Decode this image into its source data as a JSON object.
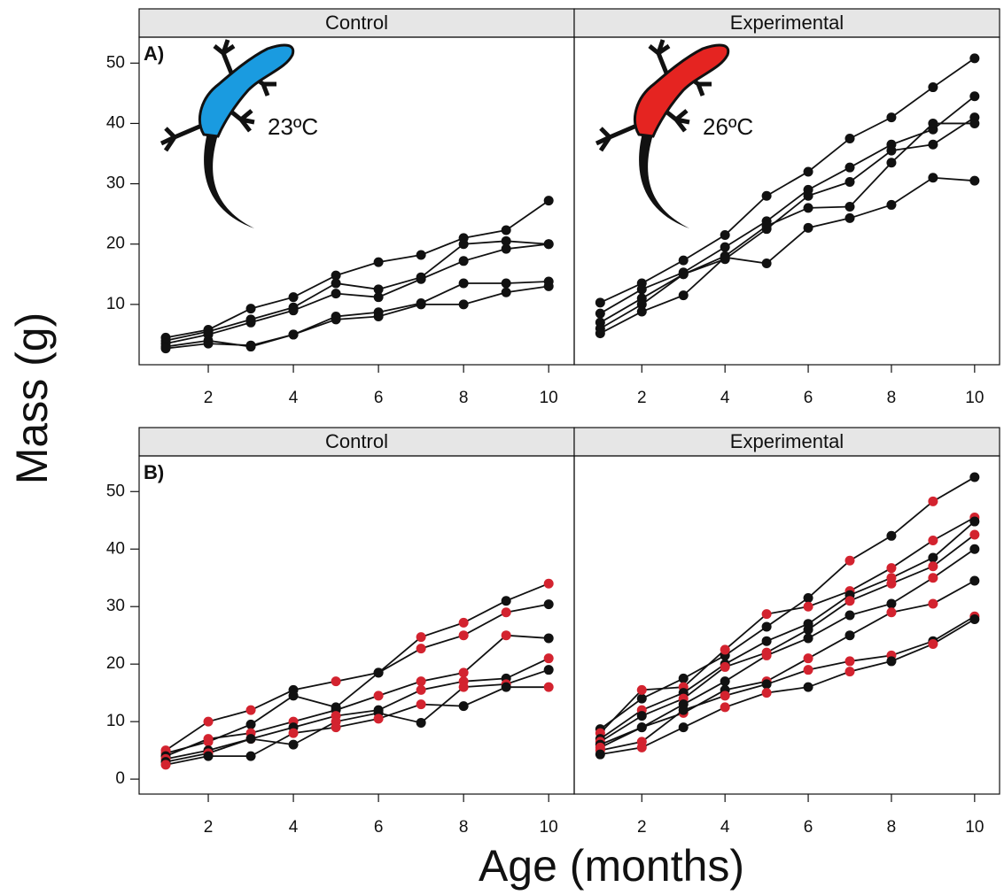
{
  "labels": {
    "y": "Mass (g)",
    "x": "Age (months)"
  },
  "chart_data": [
    {
      "type": "line",
      "title": "Control",
      "panel_label": "A)",
      "annotation": "23ºC",
      "lizard_color": "#1a9be0",
      "x": [
        1,
        2,
        3,
        4,
        5,
        6,
        7,
        8,
        9,
        10
      ],
      "xlim": [
        0.375,
        10.6
      ],
      "xticks": [
        2,
        4,
        6,
        8,
        10
      ],
      "ylim": [
        0,
        54.3
      ],
      "yticks": [
        10,
        20,
        30,
        40,
        50
      ],
      "series": [
        {
          "color": "#111111",
          "values": [
            4.5,
            5.8,
            9.3,
            11.2,
            14.8,
            17,
            18.2,
            21,
            22.3,
            27.2
          ]
        },
        {
          "color": "#111111",
          "values": [
            4,
            5.5,
            7.5,
            9.5,
            13.5,
            12.5,
            14.5,
            20,
            20.5,
            20
          ]
        },
        {
          "color": "#111111",
          "values": [
            3.5,
            5,
            7,
            9,
            11.8,
            11.2,
            14.2,
            17.2,
            19.2,
            20
          ]
        },
        {
          "color": "#111111",
          "values": [
            3,
            4,
            3,
            5,
            8,
            8.7,
            10.2,
            13.5,
            13.5,
            13.8
          ]
        },
        {
          "color": "#111111",
          "values": [
            2.7,
            3.5,
            3.2,
            5,
            7.5,
            8,
            10,
            10,
            12,
            13
          ]
        }
      ]
    },
    {
      "type": "line",
      "title": "Experimental",
      "annotation": "26ºC",
      "lizard_color": "#e52421",
      "x": [
        1,
        2,
        3,
        4,
        5,
        6,
        7,
        8,
        9,
        10
      ],
      "xlim": [
        0.375,
        10.6
      ],
      "xticks": [
        2,
        4,
        6,
        8,
        10
      ],
      "ylim": [
        0,
        54.3
      ],
      "series": [
        {
          "color": "#111111",
          "values": [
            10.3,
            13.5,
            17.3,
            21.5,
            28,
            32,
            37.5,
            41,
            46,
            50.8
          ]
        },
        {
          "color": "#111111",
          "values": [
            8.5,
            12.5,
            15.3,
            19.5,
            23.8,
            29,
            32.7,
            36.5,
            39,
            44.5
          ]
        },
        {
          "color": "#111111",
          "values": [
            7,
            11,
            15,
            17.5,
            22.5,
            28,
            30.3,
            35.5,
            36.5,
            41
          ]
        },
        {
          "color": "#111111",
          "values": [
            6,
            10,
            15,
            18,
            23,
            26,
            26.2,
            33.5,
            40,
            40
          ]
        },
        {
          "color": "#111111",
          "values": [
            5.2,
            8.8,
            11.5,
            17.8,
            16.8,
            22.7,
            24.3,
            26.5,
            31,
            30.5
          ]
        }
      ]
    },
    {
      "type": "line",
      "title": "Control",
      "panel_label": "B)",
      "x": [
        1,
        2,
        3,
        4,
        5,
        6,
        7,
        8,
        9,
        10
      ],
      "xlim": [
        0.375,
        10.6
      ],
      "xticks": [
        2,
        4,
        6,
        8,
        10
      ],
      "ylim": [
        -2.6,
        56.2
      ],
      "yticks": [
        0,
        10,
        20,
        30,
        40,
        50
      ],
      "series": [
        {
          "color": "#111111",
          "values": [
            5,
            10,
            12,
            15.5,
            17,
            18.5,
            24.7,
            27.2,
            31,
            34
          ],
          "marker_colors": [
            "#d3232f",
            "#d3232f",
            "#d3232f",
            "#111111",
            "#d3232f",
            "#111111",
            "#d3232f",
            "#d3232f",
            "#111111",
            "#d3232f"
          ]
        },
        {
          "color": "#111111",
          "values": [
            4.5,
            6.5,
            9.5,
            14.5,
            12.5,
            18.5,
            22.7,
            25,
            29,
            30.4
          ],
          "marker_colors": [
            "#d3232f",
            "#d3232f",
            "#111111",
            "#111111",
            "#111111",
            "#111111",
            "#d3232f",
            "#d3232f",
            "#d3232f",
            "#111111"
          ]
        },
        {
          "color": "#111111",
          "values": [
            4,
            7,
            8,
            10,
            12,
            14.5,
            17,
            18.5,
            25,
            24.5
          ],
          "marker_colors": [
            "#111111",
            "#d3232f",
            "#d3232f",
            "#d3232f",
            "#111111",
            "#d3232f",
            "#d3232f",
            "#d3232f",
            "#d3232f",
            "#111111"
          ]
        },
        {
          "color": "#111111",
          "values": [
            3.5,
            5,
            7,
            9,
            11,
            12,
            15.5,
            17,
            17.5,
            21
          ],
          "marker_colors": [
            "#d3232f",
            "#111111",
            "#d3232f",
            "#111111",
            "#d3232f",
            "#111111",
            "#d3232f",
            "#d3232f",
            "#111111",
            "#d3232f"
          ]
        },
        {
          "color": "#111111",
          "values": [
            3,
            4.5,
            7,
            6,
            10,
            11.5,
            9.8,
            16,
            16.5,
            19
          ],
          "marker_colors": [
            "#111111",
            "#d3232f",
            "#111111",
            "#111111",
            "#d3232f",
            "#111111",
            "#111111",
            "#d3232f",
            "#d3232f",
            "#111111"
          ]
        },
        {
          "color": "#111111",
          "values": [
            2.5,
            4,
            4,
            8,
            9,
            10.5,
            13,
            12.7,
            16,
            16
          ],
          "marker_colors": [
            "#d3232f",
            "#111111",
            "#111111",
            "#d3232f",
            "#d3232f",
            "#d3232f",
            "#d3232f",
            "#111111",
            "#111111",
            "#d3232f"
          ]
        }
      ]
    },
    {
      "type": "line",
      "title": "Experimental",
      "x": [
        1,
        2,
        3,
        4,
        5,
        6,
        7,
        8,
        9,
        10
      ],
      "xlim": [
        0.375,
        10.6
      ],
      "xticks": [
        2,
        4,
        6,
        8,
        10
      ],
      "ylim": [
        -2.6,
        56.2
      ],
      "series": [
        {
          "color": "#111111",
          "values": [
            8.7,
            14,
            17.5,
            21.5,
            26.5,
            31.5,
            38,
            42.3,
            48.3,
            52.5
          ],
          "marker_colors": [
            "#111111",
            "#111111",
            "#111111",
            "#111111",
            "#111111",
            "#111111",
            "#d3232f",
            "#111111",
            "#d3232f",
            "#111111"
          ]
        },
        {
          "color": "#111111",
          "values": [
            8,
            15.5,
            16,
            22.5,
            28.7,
            30,
            32.7,
            36.7,
            41.5,
            45.5
          ],
          "marker_colors": [
            "#d3232f",
            "#d3232f",
            "#d3232f",
            "#d3232f",
            "#d3232f",
            "#d3232f",
            "#d3232f",
            "#d3232f",
            "#d3232f",
            "#d3232f"
          ]
        },
        {
          "color": "#111111",
          "values": [
            7,
            12,
            15,
            20,
            24,
            27,
            32,
            35,
            38.5,
            44.8
          ],
          "marker_colors": [
            "#111111",
            "#d3232f",
            "#111111",
            "#111111",
            "#111111",
            "#111111",
            "#111111",
            "#d3232f",
            "#111111",
            "#111111"
          ]
        },
        {
          "color": "#111111",
          "values": [
            6.5,
            11,
            14,
            19.5,
            22,
            26,
            31,
            34,
            37,
            42.5
          ],
          "marker_colors": [
            "#d3232f",
            "#111111",
            "#d3232f",
            "#d3232f",
            "#d3232f",
            "#111111",
            "#d3232f",
            "#d3232f",
            "#d3232f",
            "#d3232f"
          ]
        },
        {
          "color": "#111111",
          "values": [
            6,
            9,
            13,
            17,
            21.5,
            24.5,
            28.5,
            30.5,
            35,
            40
          ],
          "marker_colors": [
            "#111111",
            "#111111",
            "#111111",
            "#111111",
            "#d3232f",
            "#111111",
            "#111111",
            "#111111",
            "#d3232f",
            "#111111"
          ]
        },
        {
          "color": "#111111",
          "values": [
            5.5,
            9,
            11.5,
            15.5,
            17,
            21,
            25,
            29,
            30.5,
            34.5
          ],
          "marker_colors": [
            "#d3232f",
            "#111111",
            "#d3232f",
            "#111111",
            "#d3232f",
            "#d3232f",
            "#111111",
            "#d3232f",
            "#d3232f",
            "#111111"
          ]
        },
        {
          "color": "#111111",
          "values": [
            5,
            6.5,
            12,
            14.5,
            16.5,
            19,
            20.5,
            21.5,
            24,
            28.3
          ],
          "marker_colors": [
            "#d3232f",
            "#d3232f",
            "#111111",
            "#d3232f",
            "#111111",
            "#d3232f",
            "#d3232f",
            "#d3232f",
            "#111111",
            "#d3232f"
          ]
        },
        {
          "color": "#111111",
          "values": [
            4.3,
            5.5,
            9,
            12.5,
            15,
            16,
            18.7,
            20.5,
            23.5,
            27.8
          ],
          "marker_colors": [
            "#111111",
            "#d3232f",
            "#111111",
            "#d3232f",
            "#d3232f",
            "#111111",
            "#d3232f",
            "#111111",
            "#d3232f",
            "#111111"
          ]
        }
      ]
    }
  ]
}
